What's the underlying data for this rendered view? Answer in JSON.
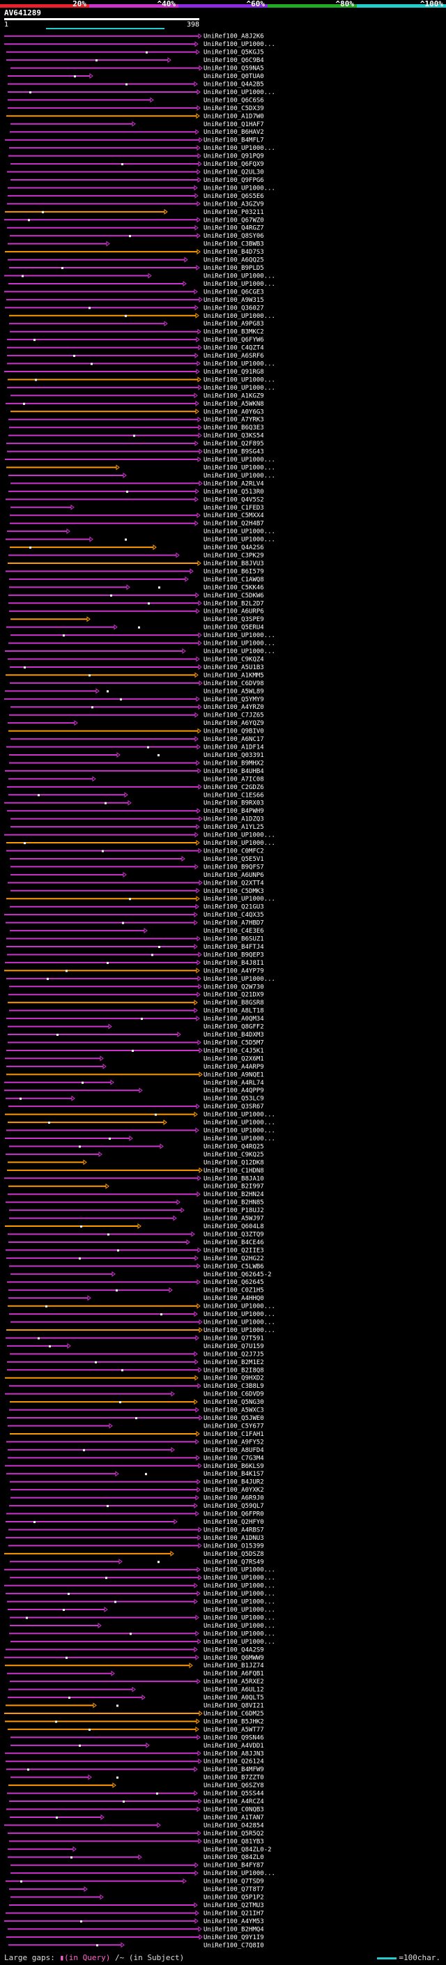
{
  "header": {
    "query_id": "AV641289",
    "left_pos": "1",
    "right_pos": "398",
    "pct_labels": [
      "20%",
      "^40%",
      "^60%",
      "^80%",
      "^100%"
    ],
    "pct_colors": [
      "#e8202a",
      "#cc33cc",
      "#8a2be2",
      "#22aa22",
      "#22cccc"
    ]
  },
  "chart_data": {
    "type": "alignment-overview",
    "title": "AV641289",
    "query_length": 398,
    "subjects": [
      "UniRef100_A8J2K6",
      "UniRef100_UP1000...",
      "UniRef100_Q5KGJ5",
      "UniRef100_Q6C9B4",
      "UniRef100_Q59NA5",
      "UniRef100_Q0TUA0",
      "UniRef100_Q4A2B5",
      "UniRef100_UP1000...",
      "UniRef100_Q6C6S6",
      "UniRef100_C5DX39",
      "UniRef100_A1D7W0",
      "UniRef100_Q1HAF7",
      "UniRef100_B6HAV2",
      "UniRef100_B4MFL7",
      "UniRef100_UP1000...",
      "UniRef100_Q91PQ9",
      "UniRef100_Q6FQX9",
      "UniRef100_Q2UL30",
      "UniRef100_Q9FPG6",
      "UniRef100_UP1000...",
      "UniRef100_Q6S5E6",
      "UniRef100_A3GZV9",
      "UniRef100_P03211",
      "UniRef100_Q67WZ0",
      "UniRef100_Q4RGZ7",
      "UniRef100_Q8SY06",
      "UniRef100_C3BWB3",
      "UniRef100_B4D7S3",
      "UniRef100_A6QQ25",
      "UniRef100_B9PLD5",
      "UniRef100_UP1000...",
      "UniRef100_UP1000...",
      "UniRef100_Q6CGE3",
      "UniRef100_A9W315",
      "UniRef100_Q36027",
      "UniRef100_UP1000...",
      "UniRef100_A9PG83",
      "UniRef100_B3MKC2",
      "UniRef100_Q6FYW6",
      "UniRef100_C4QZT4",
      "UniRef100_A6SRF6",
      "UniRef100_UP1000...",
      "UniRef100_Q91RG8",
      "UniRef100_UP1000...",
      "UniRef100_UP1000...",
      "UniRef100_A1KGZ9",
      "UniRef100_A5WKN8",
      "UniRef100_A0Y6G3",
      "UniRef100_A7YRK3",
      "UniRef100_B6Q3E3",
      "UniRef100_Q3KS54",
      "UniRef100_Q2F895",
      "UniRef100_B9SG43",
      "UniRef100_UP1000...",
      "UniRef100_UP1000...",
      "UniRef100_UP1000...",
      "UniRef100_A2RLV4",
      "UniRef100_Q513R0",
      "UniRef100_Q4V5S2",
      "UniRef100_C1FED3",
      "UniRef100_C5MXX4",
      "UniRef100_Q2H4B7",
      "UniRef100_UP1000...",
      "UniRef100_UP1000...",
      "UniRef100_Q4A2S6",
      "UniRef100_C3PK29",
      "UniRef100_B8JVU3",
      "UniRef100_B6I579",
      "UniRef100_C1AWQ8",
      "UniRef100_C5KK46",
      "UniRef100_C5DKW6",
      "UniRef100_B2L2D7",
      "UniRef100_A6URP6",
      "UniRef100_Q3SPE9",
      "UniRef100_Q5ERU4",
      "UniRef100_UP1000...",
      "UniRef100_UP1000...",
      "UniRef100_UP1000...",
      "UniRef100_C9KQZ4",
      "UniRef100_A5U1B3",
      "UniRef100_A1KMM5",
      "UniRef100_C6DV98",
      "UniRef100_A5WL89",
      "UniRef100_Q5YMY9",
      "UniRef100_A4YRZ0",
      "UniRef100_C7JZ65",
      "UniRef100_A6YQZ9",
      "UniRef100_Q9BIV0",
      "UniRef100_A6NC17",
      "UniRef100_A1DF14",
      "UniRef100_Q03391",
      "UniRef100_B9MHX2",
      "UniRef100_B4UHB4",
      "UniRef100_A7IC08",
      "UniRef100_C2GDZ6",
      "UniRef100_C1ES66",
      "UniRef100_B9RX03",
      "UniRef100_B4PWH9",
      "UniRef100_A1DZQ3",
      "UniRef100_A1YL25",
      "UniRef100_UP1000...",
      "UniRef100_UP1000...",
      "UniRef100_C0MFC2",
      "UniRef100_Q5E5V1",
      "UniRef100_B9QFS7",
      "UniRef100_A6UNP6",
      "UniRef100_Q2XTT4",
      "UniRef100_C5DMK3",
      "UniRef100_UP1000...",
      "UniRef100_Q21GU3",
      "UniRef100_C4QX35",
      "UniRef100_A7HBD7",
      "UniRef100_C4E3E6",
      "UniRef100_B6SUZ1",
      "UniRef100_B4FTJ4",
      "UniRef100_B9QEP3",
      "UniRef100_B4J8I1",
      "UniRef100_A4YP79",
      "UniRef100_UP1000...",
      "UniRef100_Q2W730",
      "UniRef100_Q21DX9",
      "UniRef100_B8GSR8",
      "UniRef100_A8LT18",
      "UniRef100_A0QM34",
      "UniRef100_Q8GFF2",
      "UniRef100_B4DXM3",
      "UniRef100_C5D5M7",
      "UniRef100_C4J5K1",
      "UniRef100_Q2X6M1",
      "UniRef100_A4ARP9",
      "UniRef100_A9NQE1",
      "UniRef100_A4RL74",
      "UniRef100_A4QPP9",
      "UniRef100_Q53LC9",
      "UniRef100_Q3SR67",
      "UniRef100_UP1000...",
      "UniRef100_UP1000...",
      "UniRef100_UP1000...",
      "UniRef100_UP1000...",
      "UniRef100_Q4RQ25",
      "UniRef100_C9KQ25",
      "UniRef100_Q12DK8",
      "UniRef100_C1HDN8",
      "UniRef100_B8JA10",
      "UniRef100_B2I997",
      "UniRef100_B2HN24",
      "UniRef100_B2HN85",
      "UniRef100_P18UJ2",
      "UniRef100_A5WJ97",
      "UniRef100_Q604L8",
      "UniRef100_Q3ZTQ9",
      "UniRef100_B4CE46",
      "UniRef100_Q2IIE3",
      "UniRef100_Q2HG22",
      "UniRef100_C5LWB6",
      "UniRef100_Q62645-2",
      "UniRef100_Q62645",
      "UniRef100_C0Z1H5",
      "UniRef100_A4HHQ0",
      "UniRef100_UP1000...",
      "UniRef100_UP1000...",
      "UniRef100_UP1000...",
      "UniRef100_UP1000...",
      "UniRef100_Q7T591",
      "UniRef100_Q7U159",
      "UniRef100_Q2J7J5",
      "UniRef100_B2M1E2",
      "UniRef100_B2I8Q8",
      "UniRef100_Q9HXD2",
      "UniRef100_C3B8L9",
      "UniRef100_C6DVD9",
      "UniRef100_Q5NG30",
      "UniRef100_A5WXC3",
      "UniRef100_Q5JWE0",
      "UniRef100_C5Y677",
      "UniRef100_C1FAH1",
      "UniRef100_A9FY52",
      "UniRef100_A8UFD4",
      "UniRef100_C7G3M4",
      "UniRef100_B6KLS9",
      "UniRef100_B4K1S7",
      "UniRef100_B4JUR2",
      "UniRef100_A0YXK2",
      "UniRef100_A6R9J0",
      "UniRef100_Q59QL7",
      "UniRef100_Q6FPR0",
      "UniRef100_Q2HFY0",
      "UniRef100_A4RBS7",
      "UniRef100_A1DNU3",
      "UniRef100_O15399",
      "UniRef100_Q5DSZ8",
      "UniRef100_Q7RS49",
      "UniRef100_UP1000...",
      "UniRef100_UP1000...",
      "UniRef100_UP1000...",
      "UniRef100_UP1000...",
      "UniRef100_UP1000...",
      "UniRef100_UP1000...",
      "UniRef100_UP1000...",
      "UniRef100_UP1000...",
      "UniRef100_UP1000...",
      "UniRef100_UP1000...",
      "UniRef100_Q4A2S9",
      "UniRef100_Q6MWW9",
      "UniRef100_B1JZ74",
      "UniRef100_A6FQB1",
      "UniRef100_A5RXE2",
      "UniRef100_A6UL12",
      "UniRef100_A0QLT5",
      "UniRef100_Q8VI21",
      "UniRef100_C6DM25",
      "UniRef100_B5JHK2",
      "UniRef100_A5WT77",
      "UniRef100_Q9SN46",
      "UniRef100_A4VDD1",
      "UniRef100_A8JJN3",
      "UniRef100_Q26124",
      "UniRef100_B4MFW9",
      "UniRef100_B7ZZT0",
      "UniRef100_Q6SZY8",
      "UniRef100_Q5SS44",
      "UniRef100_A4RCZ4",
      "UniRef100_C0NQB3",
      "UniRef100_A1TAN7",
      "UniRef100_O42854",
      "UniRef100_Q5R5Q2",
      "UniRef100_Q81YB3",
      "UniRef100_Q84ZL0-2",
      "UniRef100_Q84ZL0",
      "UniRef100_B4FY87",
      "UniRef100_UP1000...",
      "UniRef100_Q7TSD9",
      "UniRef100_Q7T8T7",
      "UniRef100_Q5P1P2",
      "UniRef100_Q2TMU3",
      "UniRef100_Q21IH7",
      "UniRef100_A4YM53",
      "UniRef100_B2HMQ4",
      "UniRef100_Q9Y1I9",
      "UniRef100_C7Q8I0"
    ],
    "legend": {
      "gaps_label": "Large gaps: ",
      "query_gap": "▮(in Query)",
      "subject_gap": "/~ (in Subject)",
      "scale": "=100char."
    }
  },
  "colors": {
    "magenta": "#cc33cc",
    "orange": "#ff9900",
    "scale": "#22cccc"
  }
}
